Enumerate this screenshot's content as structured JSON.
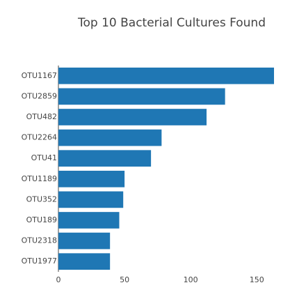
{
  "chart_data": {
    "type": "bar",
    "orientation": "horizontal",
    "title": "Top 10 Bacterial Cultures Found",
    "categories": [
      "OTU1167",
      "OTU2859",
      "OTU482",
      "OTU2264",
      "OTU41",
      "OTU1189",
      "OTU352",
      "OTU189",
      "OTU2318",
      "OTU1977"
    ],
    "values": [
      163,
      126,
      112,
      78,
      70,
      50,
      49,
      46,
      39,
      39
    ],
    "color": "#1f77b4",
    "xlim": [
      0,
      163
    ],
    "xticks": [
      0,
      50,
      100,
      150
    ],
    "grid": false
  }
}
